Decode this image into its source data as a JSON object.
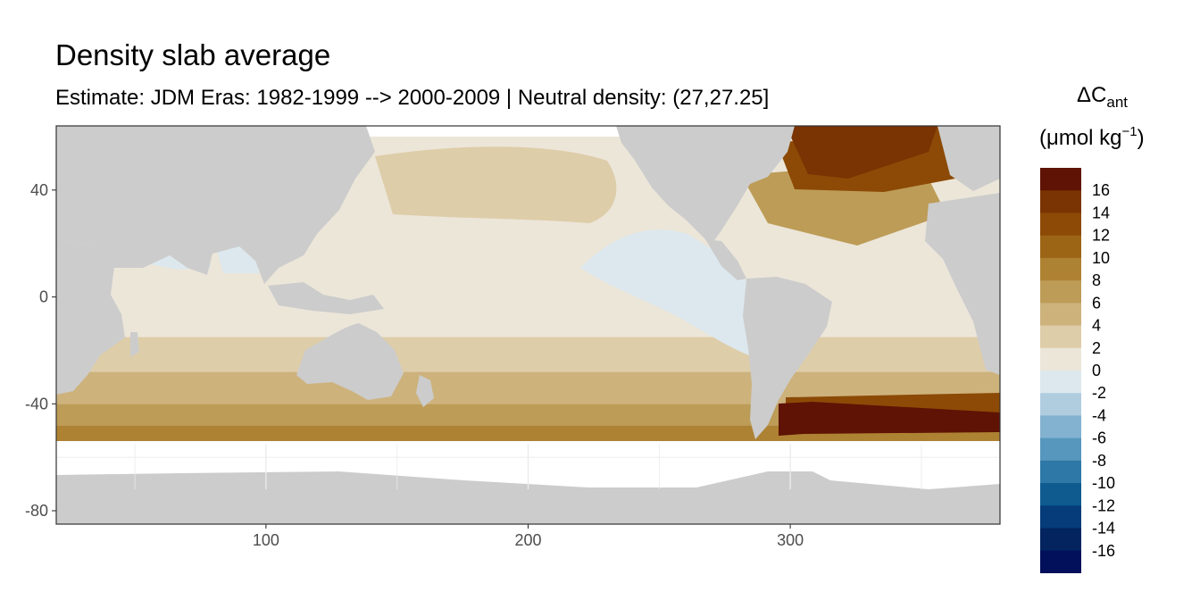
{
  "chart_data": {
    "type": "heatmap",
    "title": "Density slab average",
    "subtitle": "Estimate: JDM Eras: 1982-1999 --> 2000-2009 | Neutral density: (27,27.25]",
    "xlabel": "",
    "ylabel": "",
    "xlim": [
      20,
      380
    ],
    "ylim": [
      -85,
      64
    ],
    "x_ticks": [
      100,
      200,
      300
    ],
    "y_ticks": [
      40,
      0,
      -40,
      -80
    ],
    "grid": true,
    "legend": {
      "title_main": "ΔC",
      "title_sub": "ant",
      "unit_open": "(μmol kg",
      "unit_sup": "−1",
      "unit_close": ")",
      "placement": "right",
      "bins": [
        {
          "label": "16",
          "color": "#5e1304"
        },
        {
          "label": "14",
          "color": "#7a3303"
        },
        {
          "label": "12",
          "color": "#8c4a06"
        },
        {
          "label": "10",
          "color": "#9c6515"
        },
        {
          "label": "8",
          "color": "#ae8233"
        },
        {
          "label": "6",
          "color": "#bd9c57"
        },
        {
          "label": "4",
          "color": "#cdb27c"
        },
        {
          "label": "2",
          "color": "#decda9"
        },
        {
          "label": "0",
          "color": "#ece6d9"
        },
        {
          "label": "-2",
          "color": "#dde8ee"
        },
        {
          "label": "-4",
          "color": "#b0cde0"
        },
        {
          "label": "-6",
          "color": "#83b2d0"
        },
        {
          "label": "-8",
          "color": "#5796bd"
        },
        {
          "label": "-10",
          "color": "#2e78a7"
        },
        {
          "label": "-12",
          "color": "#0f5a8e"
        },
        {
          "label": "-14",
          "color": "#053c79"
        },
        {
          "label": "-16",
          "color": "#03245f"
        }
      ],
      "bottom_color": "#020f5a"
    },
    "bands_south": [
      {
        "range": [
          -57,
          -48
        ],
        "value": 10,
        "color": "#ae8233"
      },
      {
        "range": [
          -48,
          -40
        ],
        "value": 8,
        "color": "#bd9c57"
      },
      {
        "range": [
          -40,
          -28
        ],
        "value": 6,
        "color": "#cdb27c"
      },
      {
        "range": [
          -28,
          -15
        ],
        "value": 4,
        "color": "#decda9"
      },
      {
        "range": [
          -15,
          60
        ],
        "value": 1,
        "color": "#ece6d9"
      }
    ],
    "north_atlantic_value": 14,
    "east_pacific_value": -1,
    "land_color": "#cccccc",
    "ocean_missing_color": "#ffffff"
  }
}
